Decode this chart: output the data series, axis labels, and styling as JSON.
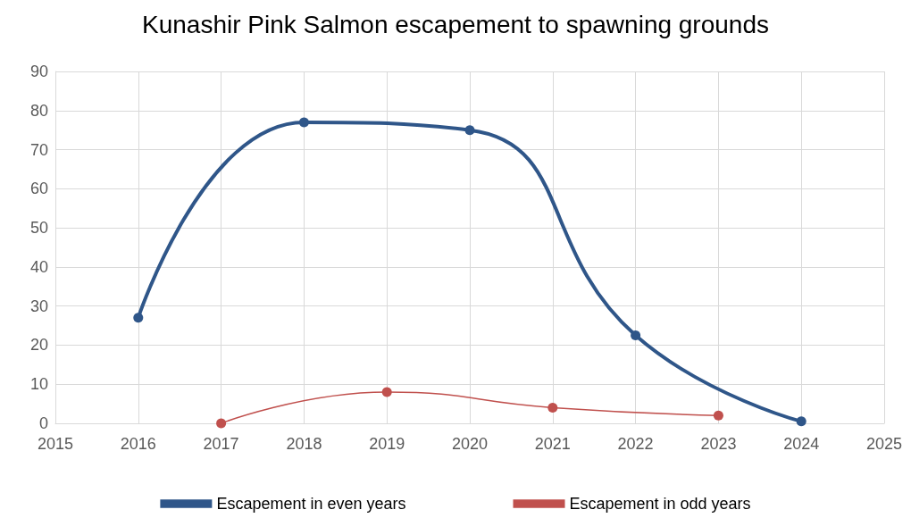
{
  "chart_data": {
    "type": "line",
    "title": "Kunashir Pink Salmon escapement to spawning grounds",
    "series": [
      {
        "name": "Escapement in even years",
        "color": "#2f5689",
        "x": [
          2016,
          2018,
          2020,
          2022,
          2024
        ],
        "values": [
          27,
          77,
          75,
          22.5,
          0.5
        ]
      },
      {
        "name": "Escapement in odd years",
        "color": "#c0504d",
        "x": [
          2017,
          2019,
          2021,
          2023
        ],
        "values": [
          0,
          8,
          4,
          2
        ]
      }
    ],
    "xlim": [
      2015,
      2025
    ],
    "xticks": [
      2015,
      2016,
      2017,
      2018,
      2019,
      2020,
      2021,
      2022,
      2023,
      2024,
      2025
    ],
    "ylim": [
      0,
      90
    ],
    "yticks": [
      0,
      10,
      20,
      30,
      40,
      50,
      60,
      70,
      80,
      90
    ],
    "grid": true,
    "legend": "bottom",
    "marker": "circle",
    "line_style": "solid"
  }
}
